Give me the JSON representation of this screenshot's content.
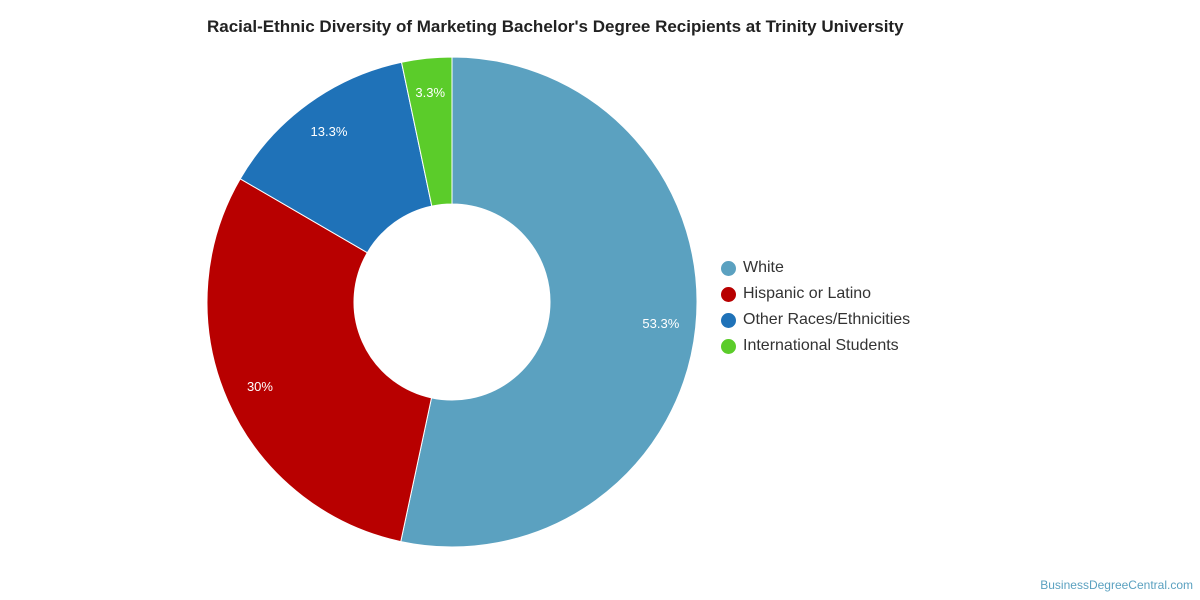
{
  "chart_data": {
    "type": "pie",
    "title": "Racial-Ethnic Diversity of Marketing Bachelor's Degree Recipients at Trinity University",
    "donut": true,
    "slices": [
      {
        "label": "White",
        "value": 53.3,
        "display": "53.3%",
        "color": "#5ba1c0"
      },
      {
        "label": "Hispanic or Latino",
        "value": 30,
        "display": "30%",
        "color": "#b80000"
      },
      {
        "label": "Other Races/Ethnicities",
        "value": 13.3,
        "display": "13.3%",
        "color": "#1f72b8"
      },
      {
        "label": "International Students",
        "value": 3.3,
        "display": "3.3%",
        "color": "#5bcc2a"
      }
    ],
    "legend_position": "right"
  },
  "footer": {
    "source": "BusinessDegreeCentral.com"
  }
}
